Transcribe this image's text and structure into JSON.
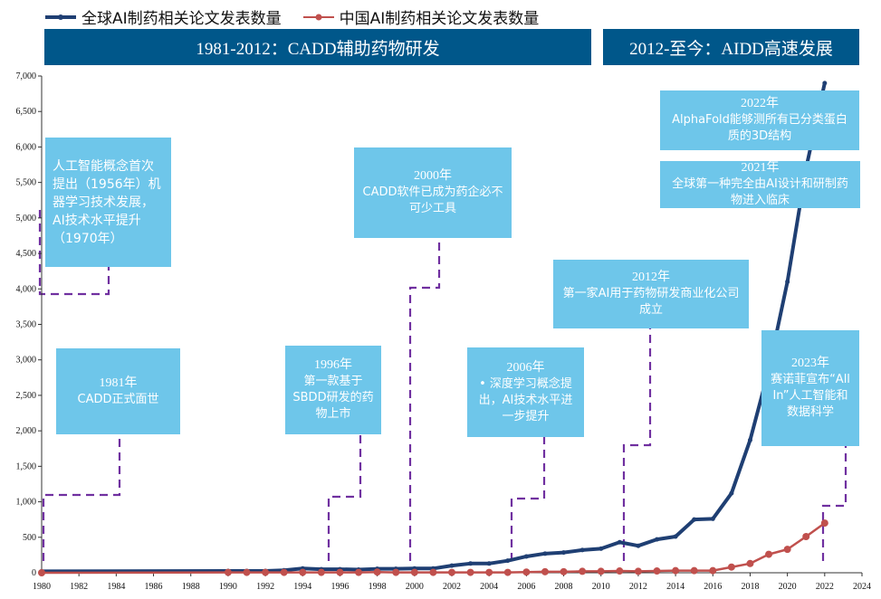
{
  "legend": [
    {
      "label": "全球AI制药相关论文发表数量",
      "color": "#1f3f73"
    },
    {
      "label": "中国AI制药相关论文发表数量",
      "color": "#c0504d"
    }
  ],
  "headers": [
    {
      "label": "1981-2012：CADD辅助药物研发"
    },
    {
      "label": "2012-至今：AIDD高速发展"
    }
  ],
  "annotations": [
    {
      "year": "",
      "text": "人工智能概念首次提出（1956年）机器学习技术发展，AI技术水平提升（1970年）"
    },
    {
      "year": "1981年",
      "text": "CADD正式面世"
    },
    {
      "year": "1996年",
      "text": "第一款基于SBDD研发的药物上市"
    },
    {
      "year": "2000年",
      "text": "CADD软件已成为药企必不可少工具"
    },
    {
      "year": "2006年",
      "text": "•  深度学习概念提出，AI技术水平进一步提升"
    },
    {
      "year": "2012年",
      "text": "第一家AI用于药物研发商业化公司成立"
    },
    {
      "year": "2022年",
      "text": "AlphaFold能够测所有已分类蛋白质的3D结构"
    },
    {
      "year": "2021年",
      "text": "全球第一种完全由AI设计和研制药物进入临床"
    },
    {
      "year": "2023年",
      "text": "赛诺菲宣布“All In”人工智能和数据科学"
    }
  ],
  "chart_data": {
    "type": "line",
    "xlim": [
      1980,
      2024
    ],
    "ylim": [
      0,
      7000
    ],
    "x_ticks": [
      1980,
      1982,
      1984,
      1986,
      1988,
      1990,
      1992,
      1994,
      1996,
      1998,
      2000,
      2002,
      2004,
      2006,
      2008,
      2010,
      2012,
      2014,
      2016,
      2018,
      2020,
      2022,
      2024
    ],
    "y_ticks": [
      "0",
      "500",
      "1,000",
      "1,500",
      "2,000",
      "2,500",
      "3,000",
      "3,500",
      "4,000",
      "4,500",
      "5,000",
      "5,500",
      "6,000",
      "6,500",
      "7,000"
    ],
    "y_tick_values": [
      0,
      500,
      1000,
      1500,
      2000,
      2500,
      3000,
      3500,
      4000,
      4500,
      5000,
      5500,
      6000,
      6500,
      7000
    ],
    "grid": false,
    "legend_position": "top",
    "series": [
      {
        "name": "全球AI制药相关论文发表数量",
        "color": "#1f3f73",
        "x": [
          1980,
          1990,
          1991,
          1992,
          1993,
          1994,
          1995,
          1996,
          1997,
          1998,
          1999,
          2000,
          2001,
          2002,
          2003,
          2004,
          2005,
          2006,
          2007,
          2008,
          2009,
          2010,
          2011,
          2012,
          2013,
          2014,
          2015,
          2016,
          2017,
          2018,
          2019,
          2020,
          2021,
          2022
        ],
        "values": [
          20,
          25,
          25,
          25,
          35,
          60,
          50,
          50,
          45,
          55,
          55,
          60,
          60,
          100,
          130,
          130,
          170,
          230,
          270,
          285,
          320,
          340,
          430,
          380,
          470,
          510,
          750,
          760,
          1120,
          1870,
          2860,
          4100,
          5700,
          6900
        ]
      },
      {
        "name": "中国AI制药相关论文发表数量",
        "color": "#c0504d",
        "x": [
          1980,
          1990,
          1991,
          1992,
          1993,
          1994,
          1995,
          1996,
          1997,
          1998,
          1999,
          2000,
          2001,
          2002,
          2003,
          2004,
          2005,
          2006,
          2007,
          2008,
          2009,
          2010,
          2011,
          2012,
          2013,
          2014,
          2015,
          2016,
          2017,
          2018,
          2019,
          2020,
          2021,
          2022
        ],
        "values": [
          0,
          5,
          5,
          5,
          5,
          5,
          5,
          5,
          5,
          10,
          5,
          5,
          5,
          5,
          5,
          5,
          5,
          10,
          15,
          15,
          20,
          20,
          25,
          20,
          25,
          30,
          30,
          30,
          80,
          130,
          260,
          330,
          510,
          700
        ]
      }
    ]
  }
}
